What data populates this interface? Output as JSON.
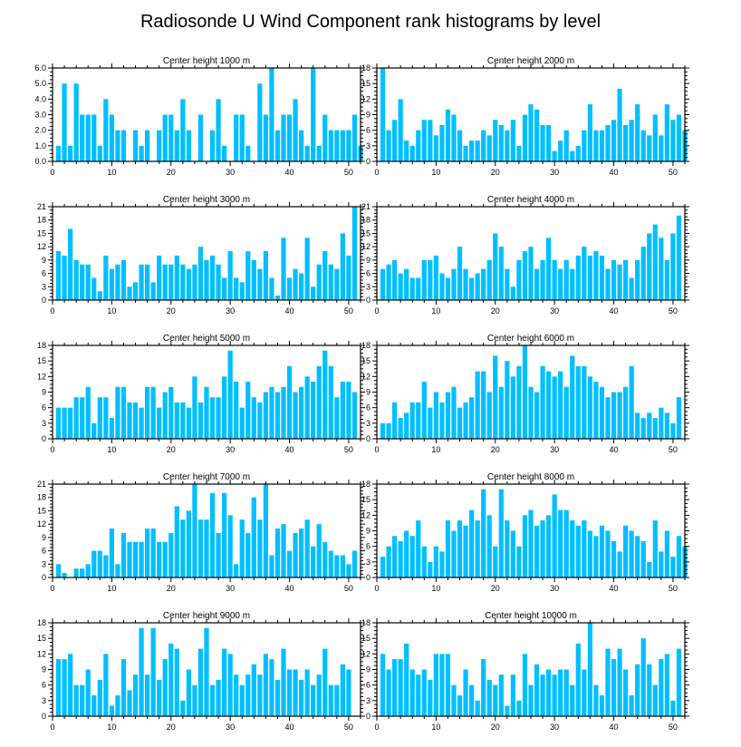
{
  "title": "Radiosonde U Wind Component rank histograms by level",
  "chart_data": [
    {
      "type": "bar",
      "title": "Center height 1000 m",
      "xlim": [
        0,
        52
      ],
      "ylim": [
        0,
        6
      ],
      "xticks": [
        0,
        10,
        20,
        30,
        40,
        50
      ],
      "yticks": [
        0,
        1,
        2,
        3,
        4,
        5,
        6
      ],
      "ytick_labels": [
        "0.0",
        "1.0",
        "2.0",
        "3.0",
        "4.0",
        "5.0",
        "6.0"
      ],
      "values": [
        1,
        5,
        1,
        5,
        3,
        3,
        3,
        1,
        4,
        3,
        2,
        2,
        0,
        2,
        1,
        2,
        0,
        2,
        3,
        3,
        2,
        4,
        2,
        0,
        3,
        0,
        2,
        4,
        1,
        0,
        3,
        3,
        1,
        0,
        5,
        3,
        6,
        2,
        3,
        3,
        4,
        2,
        1,
        6,
        1,
        3,
        2,
        2,
        2,
        2,
        3,
        1
      ]
    },
    {
      "type": "bar",
      "title": "Center height 2000 m",
      "xlim": [
        0,
        52
      ],
      "ylim": [
        0,
        18
      ],
      "xticks": [
        0,
        10,
        20,
        30,
        40,
        50
      ],
      "yticks": [
        0,
        3,
        6,
        9,
        12,
        15,
        18
      ],
      "ytick_labels": [
        "0",
        "3",
        "6",
        "9",
        "12",
        "15",
        "18"
      ],
      "values": [
        18,
        6,
        8,
        12,
        4,
        3,
        6,
        8,
        8,
        5,
        7,
        10,
        9,
        6,
        3,
        4,
        4,
        6,
        5,
        8,
        7,
        6,
        8,
        3,
        9,
        11,
        10,
        7,
        7,
        2,
        4,
        6,
        2,
        3,
        6,
        11,
        6,
        6,
        7,
        8,
        14,
        7,
        8,
        11,
        6,
        5,
        9,
        5,
        11,
        8,
        9,
        6
      ]
    },
    {
      "type": "bar",
      "title": "Center height 3000 m",
      "xlim": [
        0,
        52
      ],
      "ylim": [
        0,
        21
      ],
      "xticks": [
        0,
        10,
        20,
        30,
        40,
        50
      ],
      "yticks": [
        0,
        3,
        6,
        9,
        12,
        15,
        18,
        21
      ],
      "ytick_labels": [
        "0",
        "3",
        "6",
        "9",
        "12",
        "15",
        "18",
        "21"
      ],
      "values": [
        11,
        10,
        16,
        9,
        8,
        8,
        5,
        2,
        10,
        7,
        8,
        9,
        3,
        4,
        8,
        8,
        4,
        10,
        8,
        8,
        10,
        8,
        7,
        8,
        12,
        9,
        10,
        8,
        5,
        11,
        5,
        4,
        11,
        9,
        7,
        11,
        5,
        1,
        14,
        5,
        7,
        6,
        14,
        3,
        8,
        11,
        8,
        7,
        15,
        10,
        21,
        0
      ]
    },
    {
      "type": "bar",
      "title": "Center height 4000 m",
      "xlim": [
        0,
        52
      ],
      "ylim": [
        0,
        21
      ],
      "xticks": [
        0,
        10,
        20,
        30,
        40,
        50
      ],
      "yticks": [
        0,
        3,
        6,
        9,
        12,
        15,
        18,
        21
      ],
      "ytick_labels": [
        "0",
        "3",
        "6",
        "9",
        "12",
        "15",
        "18",
        "21"
      ],
      "values": [
        7,
        8,
        9,
        6,
        7,
        5,
        5,
        9,
        9,
        10,
        6,
        5,
        7,
        12,
        7,
        5,
        6,
        7,
        9,
        15,
        12,
        7,
        3,
        9,
        11,
        12,
        7,
        9,
        14,
        9,
        7,
        9,
        7,
        10,
        12,
        10,
        11,
        10,
        7,
        9,
        8,
        9,
        5,
        9,
        12,
        15,
        17,
        14,
        9,
        15,
        19,
        0
      ]
    },
    {
      "type": "bar",
      "title": "Center height 5000 m",
      "xlim": [
        0,
        52
      ],
      "ylim": [
        0,
        18
      ],
      "xticks": [
        0,
        10,
        20,
        30,
        40,
        50
      ],
      "yticks": [
        0,
        3,
        6,
        9,
        12,
        15,
        18
      ],
      "ytick_labels": [
        "0",
        "3",
        "6",
        "9",
        "12",
        "15",
        "18"
      ],
      "values": [
        6,
        6,
        6,
        8,
        8,
        10,
        3,
        8,
        8,
        4,
        10,
        10,
        7,
        7,
        6,
        10,
        10,
        6,
        9,
        10,
        7,
        7,
        6,
        12,
        7,
        10,
        8,
        8,
        12,
        17,
        11,
        6,
        11,
        8,
        7,
        9,
        10,
        9,
        10,
        14,
        9,
        10,
        12,
        11,
        14,
        17,
        14,
        8,
        11,
        11,
        9,
        0
      ]
    },
    {
      "type": "bar",
      "title": "Center height 6000 m",
      "xlim": [
        0,
        52
      ],
      "ylim": [
        0,
        18
      ],
      "xticks": [
        0,
        10,
        20,
        30,
        40,
        50
      ],
      "yticks": [
        0,
        3,
        6,
        9,
        12,
        15,
        18
      ],
      "ytick_labels": [
        "0",
        "3",
        "6",
        "9",
        "12",
        "15",
        "18"
      ],
      "values": [
        3,
        3,
        7,
        4,
        5,
        7,
        7,
        11,
        6,
        9,
        7,
        9,
        10,
        6,
        7,
        8,
        13,
        13,
        9,
        16,
        10,
        15,
        12,
        14,
        18,
        10,
        9,
        14,
        13,
        12,
        13,
        10,
        16,
        14,
        14,
        12,
        11,
        10,
        8,
        9,
        9,
        10,
        14,
        5,
        4,
        5,
        4,
        6,
        5,
        3,
        8,
        0
      ]
    },
    {
      "type": "bar",
      "title": "Center height 7000 m",
      "xlim": [
        0,
        52
      ],
      "ylim": [
        0,
        21
      ],
      "xticks": [
        0,
        10,
        20,
        30,
        40,
        50
      ],
      "yticks": [
        0,
        3,
        6,
        9,
        12,
        15,
        18,
        21
      ],
      "ytick_labels": [
        "0",
        "3",
        "6",
        "9",
        "12",
        "15",
        "18",
        "21"
      ],
      "values": [
        3,
        1,
        0,
        2,
        2,
        3,
        6,
        6,
        5,
        11,
        3,
        10,
        8,
        8,
        8,
        11,
        11,
        8,
        8,
        10,
        16,
        13,
        15,
        21,
        13,
        13,
        19,
        10,
        19,
        14,
        3,
        13,
        10,
        18,
        13,
        21,
        5,
        11,
        12,
        6,
        10,
        11,
        13,
        7,
        12,
        8,
        6,
        5,
        5,
        3,
        6,
        0
      ]
    },
    {
      "type": "bar",
      "title": "Center height 8000 m",
      "xlim": [
        0,
        52
      ],
      "ylim": [
        0,
        18
      ],
      "xticks": [
        0,
        10,
        20,
        30,
        40,
        50
      ],
      "yticks": [
        0,
        3,
        6,
        9,
        12,
        15,
        18
      ],
      "ytick_labels": [
        "0",
        "3",
        "6",
        "9",
        "12",
        "15",
        "18"
      ],
      "values": [
        4,
        6,
        8,
        7,
        9,
        8,
        11,
        6,
        3,
        6,
        5,
        11,
        9,
        11,
        10,
        13,
        11,
        17,
        12,
        6,
        17,
        11,
        9,
        6,
        12,
        13,
        10,
        11,
        12,
        16,
        13,
        13,
        11,
        10,
        11,
        9,
        8,
        10,
        9,
        7,
        5,
        10,
        9,
        8,
        7,
        3,
        11,
        5,
        9,
        4,
        8,
        6
      ]
    },
    {
      "type": "bar",
      "title": "Center height 9000 m",
      "xlim": [
        0,
        52
      ],
      "ylim": [
        0,
        18
      ],
      "xticks": [
        0,
        10,
        20,
        30,
        40,
        50
      ],
      "yticks": [
        0,
        3,
        6,
        9,
        12,
        15,
        18
      ],
      "ytick_labels": [
        "0",
        "3",
        "6",
        "9",
        "12",
        "15",
        "18"
      ],
      "values": [
        11,
        11,
        12,
        6,
        6,
        9,
        4,
        7,
        12,
        2,
        4,
        11,
        5,
        8,
        17,
        8,
        17,
        7,
        11,
        14,
        13,
        3,
        9,
        6,
        13,
        17,
        6,
        7,
        13,
        12,
        8,
        6,
        8,
        10,
        8,
        12,
        11,
        7,
        13,
        9,
        9,
        7,
        9,
        6,
        8,
        13,
        6,
        6,
        10,
        9,
        0,
        0
      ]
    },
    {
      "type": "bar",
      "title": "Center height 10000 m",
      "xlim": [
        0,
        52
      ],
      "ylim": [
        0,
        18
      ],
      "xticks": [
        0,
        10,
        20,
        30,
        40,
        50
      ],
      "yticks": [
        0,
        3,
        6,
        9,
        12,
        15,
        18
      ],
      "ytick_labels": [
        "0",
        "3",
        "6",
        "9",
        "12",
        "15",
        "18"
      ],
      "values": [
        12,
        9,
        11,
        11,
        14,
        9,
        8,
        9,
        7,
        12,
        12,
        12,
        6,
        4,
        9,
        6,
        3,
        11,
        7,
        6,
        8,
        2,
        8,
        3,
        12,
        6,
        10,
        8,
        9,
        8,
        9,
        9,
        6,
        14,
        9,
        18,
        6,
        4,
        13,
        11,
        13,
        9,
        4,
        10,
        15,
        10,
        6,
        11,
        12,
        3,
        13,
        0
      ]
    }
  ]
}
